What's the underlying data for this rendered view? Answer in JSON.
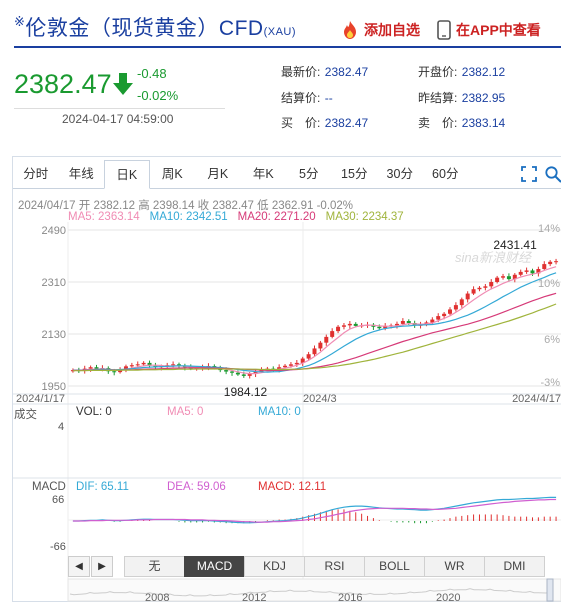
{
  "header": {
    "title_mark": "※",
    "title": "伦敦金（现货黄金）CFD",
    "title_code": "(XAU)",
    "add_watchlist": "添加自选",
    "view_in_app": "在APP中查看"
  },
  "quote": {
    "price": "2382.47",
    "change": "-0.48",
    "change_pct": "-0.02%",
    "timestamp": "2024-04-17 04:59:00",
    "fields": [
      {
        "label": "最新价:",
        "value": "2382.47"
      },
      {
        "label": "开盘价:",
        "value": "2382.12"
      },
      {
        "label": "结算价:",
        "value": "--"
      },
      {
        "label": "昨结算:",
        "value": "2382.95"
      },
      {
        "label": "买　价:",
        "value": "2382.47"
      },
      {
        "label": "卖　价:",
        "value": "2383.14"
      }
    ],
    "colors": {
      "down": "#1a9a30",
      "up": "#e03030",
      "link": "#1a3fa0"
    }
  },
  "tabs": [
    "分时",
    "年线",
    "日K",
    "周K",
    "月K",
    "年K",
    "5分",
    "15分",
    "30分",
    "60分"
  ],
  "active_tab": 2,
  "toolbar_icons": [
    "fullscreen-icon",
    "search-icon"
  ],
  "chart_data": {
    "type": "candlestick",
    "info_line": "2024/04/17 开 2382.12 高 2398.14 收 2382.47 低 2362.91 -0.02%",
    "ma": [
      {
        "label": "MA5: 2363.14",
        "color": "#f08cb4"
      },
      {
        "label": "MA10: 2342.51",
        "color": "#34a9d6"
      },
      {
        "label": "MA20: 2271.20",
        "color": "#d63a78"
      },
      {
        "label": "MA30: 2234.37",
        "color": "#a0b43c"
      }
    ],
    "y_ticks": [
      "2490",
      "2310",
      "2130",
      "1950"
    ],
    "y_pct_ticks": [
      "14%",
      "10%",
      "6%",
      "-3%"
    ],
    "x_ticks": [
      "2024/1/17",
      "2024/3",
      "2024/4/17"
    ],
    "ylim": [
      1950,
      2490
    ],
    "annotation_high": "2431.41",
    "annotation_low": "1984.12",
    "watermark": "sina新浪财经",
    "closes": [
      2005,
      2002,
      2010,
      2015,
      2008,
      2012,
      2001,
      1998,
      2005,
      2018,
      2022,
      2025,
      2030,
      2020,
      2015,
      2018,
      2022,
      2025,
      2019,
      2015,
      2010,
      2012,
      2016,
      2019,
      2012,
      2005,
      2000,
      1996,
      1990,
      1985,
      1992,
      2000,
      2005,
      2010,
      2008,
      2015,
      2020,
      2025,
      2030,
      2045,
      2060,
      2080,
      2100,
      2120,
      2140,
      2155,
      2160,
      2165,
      2158,
      2160,
      2162,
      2155,
      2150,
      2158,
      2160,
      2165,
      2175,
      2168,
      2160,
      2162,
      2170,
      2180,
      2192,
      2200,
      2215,
      2230,
      2250,
      2270,
      2285,
      2290,
      2295,
      2310,
      2325,
      2330,
      2320,
      2335,
      2345,
      2350,
      2340,
      2355,
      2372,
      2380,
      2382
    ],
    "ma5": [
      2005,
      2004,
      2006,
      2008,
      2008,
      2010,
      2008,
      2006,
      2006,
      2008,
      2012,
      2016,
      2020,
      2022,
      2022,
      2021,
      2019,
      2020,
      2020,
      2019,
      2016,
      2014,
      2014,
      2014,
      2013,
      2011,
      2008,
      2004,
      1999,
      1995,
      1993,
      1993,
      1996,
      2000,
      2004,
      2008,
      2012,
      2016,
      2022,
      2029,
      2039,
      2052,
      2067,
      2085,
      2102,
      2118,
      2134,
      2147,
      2155,
      2159,
      2161,
      2160,
      2158,
      2157,
      2157,
      2158,
      2162,
      2166,
      2165,
      2164,
      2165,
      2168,
      2176,
      2184,
      2193,
      2205,
      2218,
      2233,
      2248,
      2262,
      2275,
      2286,
      2295,
      2305,
      2313,
      2320,
      2327,
      2333,
      2337,
      2342,
      2350,
      2357,
      2363
    ],
    "ma10": [
      2005,
      2005,
      2005,
      2006,
      2007,
      2008,
      2007,
      2006,
      2007,
      2008,
      2010,
      2012,
      2014,
      2015,
      2016,
      2017,
      2018,
      2019,
      2020,
      2020,
      2019,
      2018,
      2017,
      2016,
      2015,
      2014,
      2012,
      2010,
      2007,
      2004,
      2002,
      2000,
      1999,
      1998,
      1999,
      2000,
      2003,
      2006,
      2010,
      2015,
      2021,
      2029,
      2039,
      2050,
      2062,
      2075,
      2088,
      2100,
      2112,
      2122,
      2131,
      2138,
      2144,
      2149,
      2152,
      2155,
      2157,
      2158,
      2160,
      2161,
      2162,
      2163,
      2166,
      2170,
      2175,
      2181,
      2188,
      2195,
      2204,
      2214,
      2225,
      2236,
      2247,
      2259,
      2270,
      2281,
      2292,
      2301,
      2310,
      2318,
      2326,
      2335,
      2342
    ],
    "ma20": [
      2004,
      2004,
      2004,
      2005,
      2005,
      2005,
      2005,
      2005,
      2005,
      2006,
      2006,
      2007,
      2008,
      2009,
      2009,
      2010,
      2011,
      2012,
      2012,
      2013,
      2013,
      2013,
      2013,
      2012,
      2012,
      2011,
      2011,
      2010,
      2009,
      2008,
      2007,
      2006,
      2005,
      2004,
      2004,
      2004,
      2005,
      2006,
      2007,
      2009,
      2011,
      2014,
      2017,
      2021,
      2025,
      2030,
      2036,
      2042,
      2048,
      2055,
      2062,
      2069,
      2076,
      2083,
      2090,
      2097,
      2104,
      2110,
      2116,
      2122,
      2128,
      2134,
      2139,
      2144,
      2149,
      2154,
      2159,
      2164,
      2170,
      2176,
      2183,
      2190,
      2197,
      2205,
      2213,
      2221,
      2229,
      2237,
      2245,
      2252,
      2259,
      2265,
      2271
    ],
    "ma30": [
      2003,
      2003,
      2003,
      2004,
      2004,
      2004,
      2004,
      2004,
      2005,
      2005,
      2005,
      2005,
      2006,
      2006,
      2006,
      2007,
      2007,
      2007,
      2008,
      2008,
      2008,
      2009,
      2009,
      2009,
      2009,
      2009,
      2009,
      2009,
      2009,
      2008,
      2008,
      2008,
      2007,
      2007,
      2007,
      2007,
      2007,
      2008,
      2008,
      2009,
      2010,
      2012,
      2013,
      2015,
      2018,
      2020,
      2023,
      2026,
      2030,
      2034,
      2038,
      2042,
      2047,
      2052,
      2057,
      2062,
      2067,
      2073,
      2079,
      2085,
      2091,
      2097,
      2103,
      2109,
      2115,
      2121,
      2127,
      2133,
      2139,
      2145,
      2151,
      2157,
      2163,
      2169,
      2175,
      2182,
      2189,
      2196,
      2203,
      2211,
      2218,
      2226,
      2234
    ],
    "volume_label": "成交",
    "vol_legend": [
      {
        "label": "VOL: 0",
        "color": "#333333"
      },
      {
        "label": "MA5: 0",
        "color": "#f08cb4"
      },
      {
        "label": "MA10: 0",
        "color": "#34a9d6"
      }
    ],
    "vol_tick": "4",
    "macd_label": "MACD",
    "macd_legend": [
      {
        "label": "DIF: 65.11",
        "color": "#34a9d6"
      },
      {
        "label": "DEA: 59.06",
        "color": "#d05fd0"
      },
      {
        "label": "MACD: 12.11",
        "color": "#e03030"
      }
    ],
    "macd_ticks": [
      "66",
      "-66"
    ],
    "macd_ylim": [
      -66,
      66
    ],
    "macd_dif": [
      0,
      0,
      1,
      2,
      2,
      3,
      2,
      1,
      1,
      2,
      3,
      4,
      5,
      5,
      4,
      4,
      4,
      4,
      3,
      2,
      1,
      1,
      1,
      1,
      0,
      -1,
      -2,
      -3,
      -4,
      -5,
      -5,
      -4,
      -3,
      -2,
      -1,
      0,
      1,
      3,
      5,
      8,
      12,
      16,
      21,
      26,
      31,
      35,
      38,
      40,
      41,
      41,
      40,
      38,
      36,
      35,
      34,
      33,
      33,
      32,
      31,
      30,
      30,
      31,
      33,
      35,
      38,
      41,
      44,
      47,
      50,
      52,
      54,
      56,
      58,
      59,
      59,
      60,
      61,
      62,
      62,
      63,
      64,
      65,
      65
    ],
    "macd_dea": [
      0,
      0,
      0,
      1,
      1,
      1,
      2,
      2,
      2,
      2,
      2,
      3,
      3,
      3,
      4,
      4,
      4,
      4,
      4,
      4,
      3,
      3,
      3,
      2,
      2,
      1,
      1,
      0,
      -1,
      -2,
      -2,
      -3,
      -3,
      -3,
      -2,
      -2,
      -1,
      0,
      1,
      2,
      4,
      6,
      9,
      12,
      15,
      19,
      22,
      26,
      29,
      31,
      33,
      34,
      35,
      35,
      35,
      35,
      35,
      34,
      34,
      33,
      33,
      32,
      32,
      33,
      34,
      35,
      37,
      39,
      41,
      43,
      45,
      47,
      49,
      51,
      52,
      54,
      55,
      56,
      57,
      58,
      58,
      59,
      59
    ],
    "timeline_years": [
      "2008",
      "2012",
      "2016",
      "2020"
    ]
  },
  "indicator_tabs": [
    "无",
    "MACD",
    "KDJ",
    "RSI",
    "BOLL",
    "WR",
    "DMI"
  ],
  "active_indicator": 1,
  "nav_left": "◀",
  "nav_right": "▶"
}
